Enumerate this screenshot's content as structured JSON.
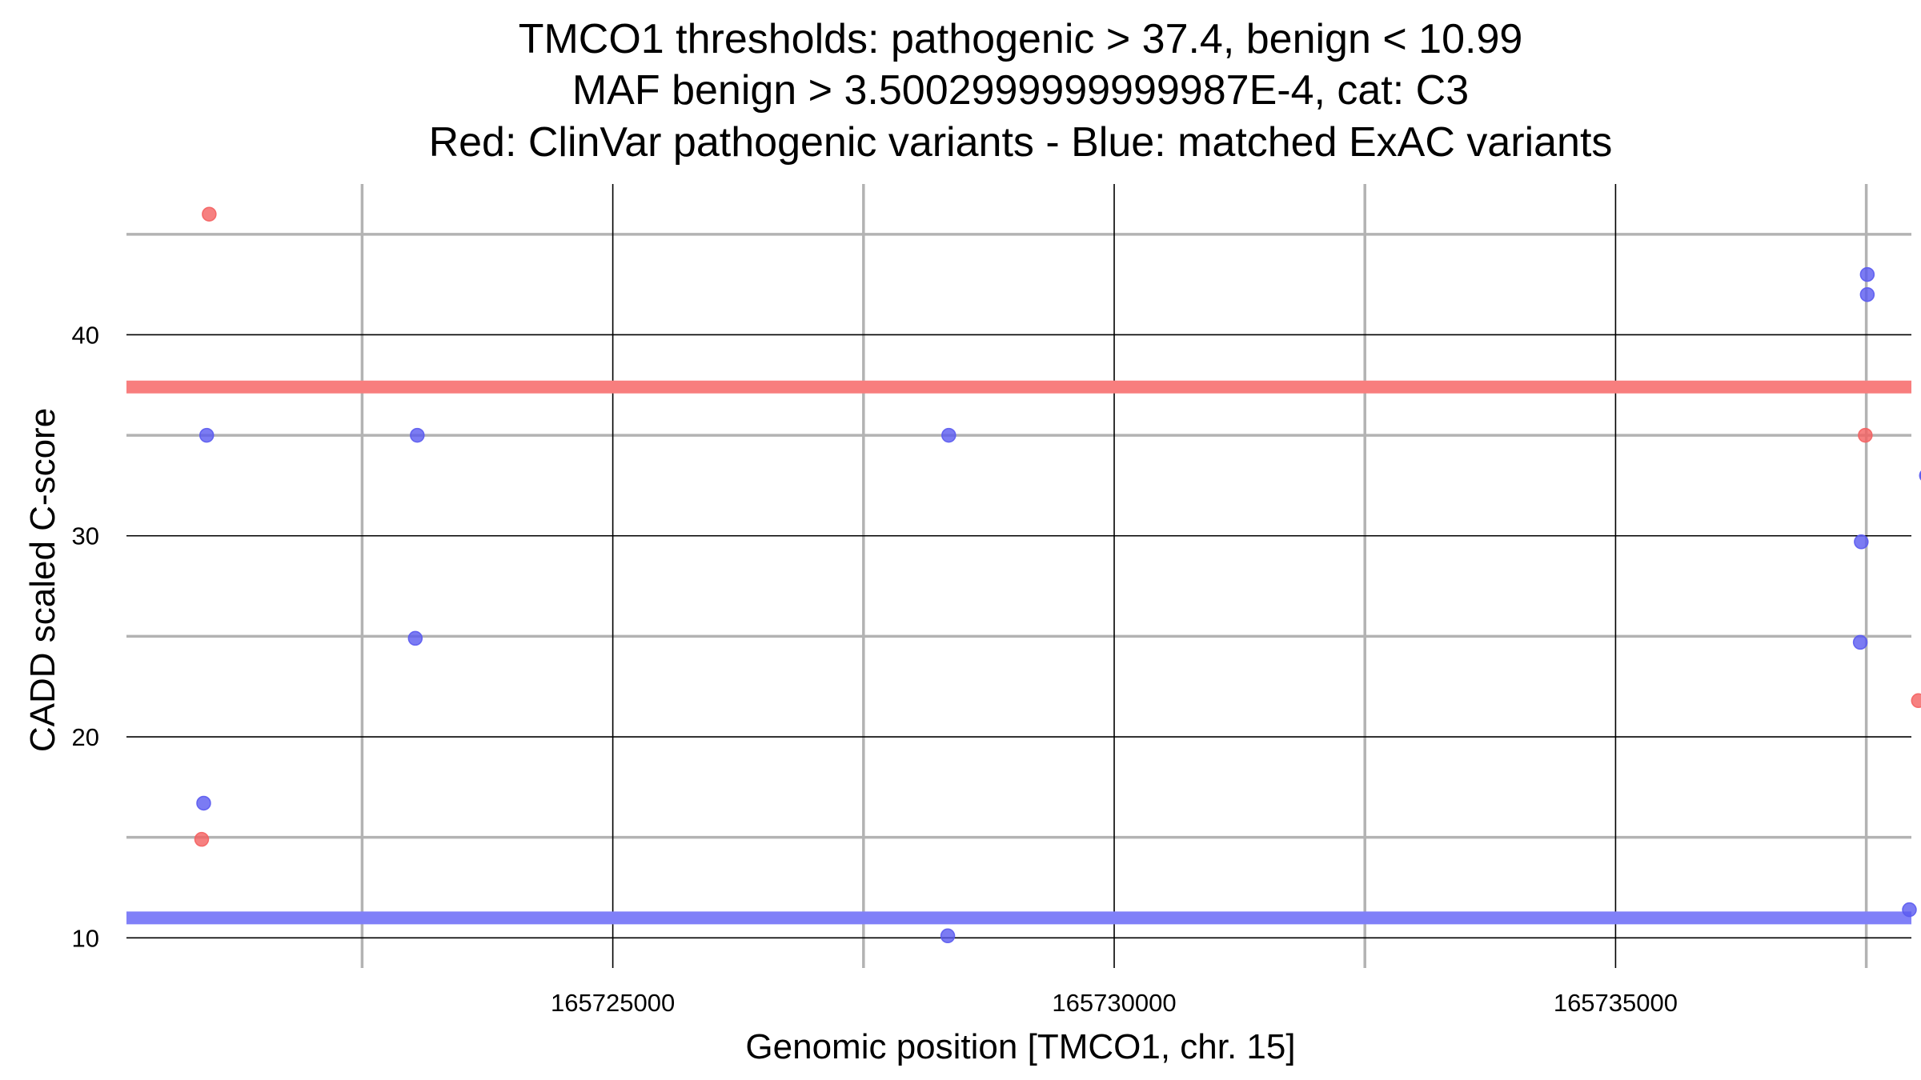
{
  "chart_data": {
    "type": "scatter",
    "title_lines": [
      "TMCO1 thresholds: pathogenic > 37.4, benign < 10.99",
      "MAF benign > 3.5002999999999987E-4, cat: C3",
      "Red: ClinVar pathogenic variants - Blue: matched ExAC variants"
    ],
    "xlabel": "Genomic position [TMCO1, chr. 15]",
    "ylabel": "CADD scaled C-score",
    "xlim": [
      165720150,
      165737950
    ],
    "ylim": [
      8.5,
      47.5
    ],
    "x_major_ticks": [
      165725000,
      165730000,
      165735000
    ],
    "x_major_tick_labels": [
      "165725000",
      "165730000",
      "165735000"
    ],
    "x_minor_gridlines": [
      165722500,
      165727500,
      165732500,
      165737500
    ],
    "y_major_ticks": [
      10,
      20,
      30,
      40
    ],
    "y_major_tick_labels": [
      "10",
      "20",
      "30",
      "40"
    ],
    "y_minor_gridlines": [
      15,
      25,
      35,
      45
    ],
    "thresholds": {
      "pathogenic": {
        "value": 37.4,
        "color": "#f87e7e"
      },
      "benign": {
        "value": 10.99,
        "color": "#8080f8"
      }
    },
    "series": [
      {
        "name": "ClinVar pathogenic variants",
        "color": "#f46060",
        "points": [
          {
            "x": 165720975,
            "y": 46
          },
          {
            "x": 165720900,
            "y": 14.9
          },
          {
            "x": 165737490,
            "y": 35
          },
          {
            "x": 165738020,
            "y": 21.8
          }
        ]
      },
      {
        "name": "matched ExAC variants",
        "color": "#5a5af0",
        "points": [
          {
            "x": 165720950,
            "y": 35
          },
          {
            "x": 165720920,
            "y": 16.7
          },
          {
            "x": 165723050,
            "y": 35
          },
          {
            "x": 165723030,
            "y": 24.9
          },
          {
            "x": 165728350,
            "y": 35
          },
          {
            "x": 165728340,
            "y": 10.1
          },
          {
            "x": 165737510,
            "y": 43
          },
          {
            "x": 165737510,
            "y": 42
          },
          {
            "x": 165737450,
            "y": 29.7
          },
          {
            "x": 165737440,
            "y": 24.7
          },
          {
            "x": 165738100,
            "y": 33
          },
          {
            "x": 165738110,
            "y": 33
          },
          {
            "x": 165737930,
            "y": 11.4
          }
        ]
      }
    ]
  }
}
